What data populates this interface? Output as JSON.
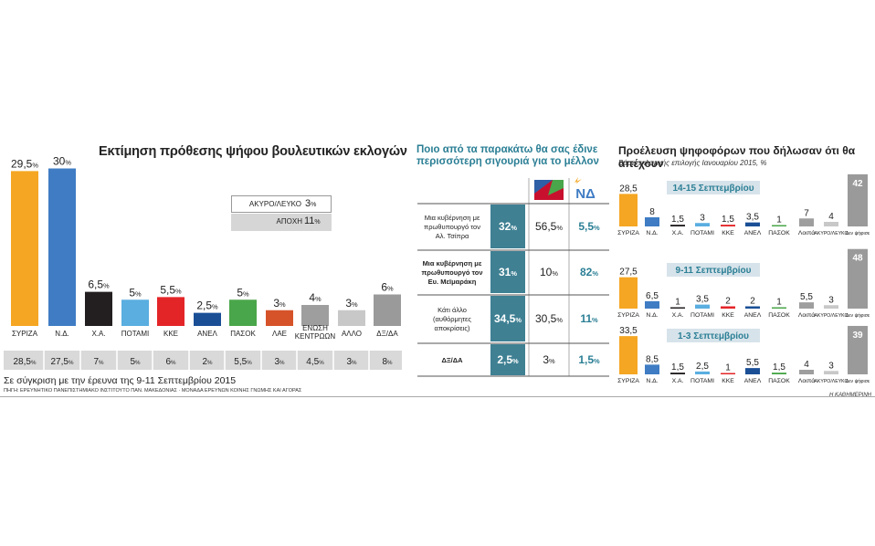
{
  "left": {
    "title": "Εκτίμηση πρόθεσης ψήφου βουλευτικών εκλογών",
    "comparison_note": "Σε σύγκριση με την έρευνα της 9-11 Σεπτεμβρίου 2015",
    "source": "ΠΗΓΗ: ΕΡΕΥΝΗΤΙΚΟ ΠΑΝΕΠΙΣΤΗΜΙΑΚΟ ΙΝΣΤΙΤΟΥΤΟ ΠΑΝ. ΜΑΚΕΔΟΝΙΑΣ · ΜΟΝΑΔΑ ΕΡΕΥΝΩΝ ΚΟΙΝΗΣ ΓΝΩΜΗΣ ΚΑΙ ΑΓΟΡΑΣ",
    "legend_box": [
      {
        "label": "ΑΚΥΡΟ/ΛΕΥΚΟ",
        "value": "3",
        "unit": "%"
      },
      {
        "label": "ΑΠΟΧΗ",
        "value": "11",
        "unit": "%"
      }
    ]
  },
  "chart_data": [
    {
      "type": "bar",
      "title": "Εκτίμηση πρόθεσης ψήφου βουλευτικών εκλογών",
      "categories": [
        "ΣΥΡΙΖΑ",
        "Ν.Δ.",
        "Χ.Α.",
        "ΠΟΤΑΜΙ",
        "ΚΚΕ",
        "ΑΝΕΛ",
        "ΠΑΣΟΚ",
        "ΛΑΕ",
        "ΕΝΩΣΗ ΚΕΝΤΡΩΩΝ",
        "ΑΛΛΟ",
        "ΔΞ/ΔΑ"
      ],
      "values": [
        29.5,
        30,
        6.5,
        5,
        5.5,
        2.5,
        5,
        3,
        4,
        3,
        6
      ],
      "value_labels": [
        "29,5",
        "30",
        "6,5",
        "5",
        "5,5",
        "2,5",
        "5",
        "3",
        "4",
        "3",
        "6"
      ],
      "previous_labels": [
        "28,5",
        "27,5",
        "7",
        "5",
        "6",
        "2",
        "5,5",
        "3",
        "4,5",
        "3",
        "8"
      ],
      "colors": [
        "#f5a623",
        "#3f7cc4",
        "#231f20",
        "#5aaee0",
        "#e42528",
        "#1a4f96",
        "#4aa64a",
        "#d6532a",
        "#9e9e9e",
        "#c8c8c8",
        "#9a9a9a"
      ],
      "ylim": [
        0,
        32
      ]
    },
    {
      "type": "table",
      "title": "Ποιο από τα παρακάτω θα σας έδινε περισσότερη σιγουριά για το μέλλον",
      "columns": [
        "",
        "ΣΥΡΙΖΑ",
        "ΝΔ"
      ],
      "rows": [
        {
          "label": "Μια κυβέρνηση με πρωθυπουργό τον Αλ. Τσίπρα",
          "bold": false,
          "total": "32",
          "syriza": "56,5",
          "nd": "5,5"
        },
        {
          "label": "Μια κυβέρνηση με πρωθυπουργό τον Ευ. Μεϊμαράκη",
          "bold": true,
          "total": "31",
          "syriza": "10",
          "nd": "82"
        },
        {
          "label": "Κάτι άλλο (αυθόρμητες αποκρίσεις)",
          "bold": false,
          "total": "34,5",
          "syriza": "30,5",
          "nd": "11"
        },
        {
          "label": "ΔΞ/ΔΑ",
          "bold": true,
          "total": "2,5",
          "syriza": "3",
          "nd": "1,5"
        }
      ]
    },
    {
      "type": "bar",
      "title": "Προέλευση ψηφοφόρων που δήλωσαν ότι θα απέχουν",
      "subtitle": "Βάσει εκλογικής επιλογής Ιανουαρίου 2015, %",
      "categories": [
        "ΣΥΡΙΖΑ",
        "Ν.Δ.",
        "Χ.Α.",
        "ΠΟΤΑΜΙ",
        "ΚΚΕ",
        "ΑΝΕΛ",
        "ΠΑΣΟΚ",
        "Λοιπά",
        "ΑΚΥΡΟ/ΛΕΥΚΟ",
        "Δεν ψήφισε"
      ],
      "colors": [
        "#f5a623",
        "#3f7cc4",
        "#231f20",
        "#5aaee0",
        "#e42528",
        "#1a4f96",
        "#4aa64a",
        "#9e9e9e",
        "#c8c8c8",
        "#9a9a9a"
      ],
      "series": [
        {
          "name": "14-15 Σεπτεμβρίου",
          "values": [
            28.5,
            8,
            1.5,
            3,
            1.5,
            3.5,
            1,
            7,
            4,
            42
          ],
          "labels": [
            "28,5",
            "8",
            "1,5",
            "3",
            "1,5",
            "3,5",
            "1",
            "7",
            "4",
            "42"
          ]
        },
        {
          "name": "9-11 Σεπτεμβρίου",
          "values": [
            27.5,
            6.5,
            1,
            3.5,
            2,
            2,
            1,
            5.5,
            3,
            48
          ],
          "labels": [
            "27,5",
            "6,5",
            "1",
            "3,5",
            "2",
            "2",
            "1",
            "5,5",
            "3",
            "48"
          ]
        },
        {
          "name": "1-3 Σεπτεμβρίου",
          "values": [
            33.5,
            8.5,
            1.5,
            2.5,
            1,
            5.5,
            1.5,
            4,
            3,
            39
          ],
          "labels": [
            "33,5",
            "8,5",
            "1,5",
            "2,5",
            "1",
            "5,5",
            "1,5",
            "4",
            "3",
            "39"
          ]
        }
      ]
    }
  ],
  "credit": "Η ΚΑΘΗΜΕΡΙΝΗ"
}
